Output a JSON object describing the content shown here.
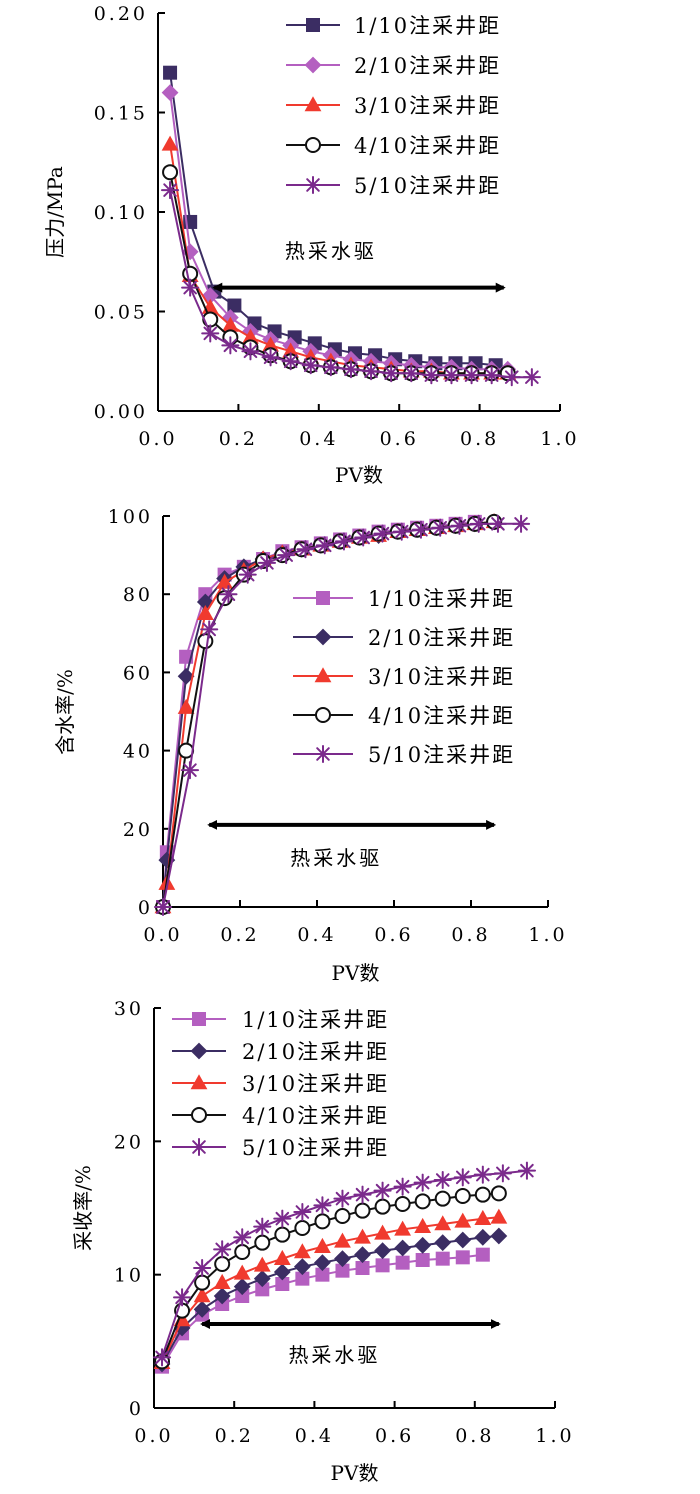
{
  "chart_data": [
    {
      "type": "line",
      "ylabel": "压力/MPa",
      "xlabel": "PV数",
      "xlim": [
        0,
        1.0
      ],
      "ylim": [
        0,
        0.2
      ],
      "x_ticks": [
        "0.0",
        "0.2",
        "0.4",
        "0.6",
        "0.8",
        "1.0"
      ],
      "y_ticks": [
        "0.00",
        "0.05",
        "0.10",
        "0.15",
        "0.20"
      ],
      "annotation": "热采水驱",
      "annotation_arrow": [
        0.14,
        0.86
      ],
      "annotation_arrow_y": 0.062,
      "legend_position": "top-right",
      "series": [
        {
          "name": "1/10注采井距",
          "marker": "square",
          "color": "#3b2d63",
          "x": [
            0.03,
            0.08,
            0.14,
            0.19,
            0.24,
            0.29,
            0.34,
            0.39,
            0.44,
            0.49,
            0.54,
            0.59,
            0.64,
            0.69,
            0.74,
            0.79,
            0.84
          ],
          "y": [
            0.17,
            0.095,
            0.06,
            0.053,
            0.044,
            0.04,
            0.037,
            0.034,
            0.031,
            0.029,
            0.028,
            0.026,
            0.025,
            0.024,
            0.024,
            0.024,
            0.023
          ]
        },
        {
          "name": "2/10注采井距",
          "marker": "diamond",
          "color": "#b45fc0",
          "x": [
            0.03,
            0.08,
            0.13,
            0.18,
            0.23,
            0.28,
            0.33,
            0.38,
            0.43,
            0.48,
            0.53,
            0.58,
            0.63,
            0.68,
            0.73,
            0.78,
            0.83,
            0.87
          ],
          "y": [
            0.16,
            0.08,
            0.058,
            0.047,
            0.04,
            0.036,
            0.033,
            0.03,
            0.028,
            0.026,
            0.025,
            0.024,
            0.023,
            0.022,
            0.022,
            0.021,
            0.021,
            0.021
          ]
        },
        {
          "name": "3/10注采井距",
          "marker": "triangle",
          "color": "#f03a2e",
          "x": [
            0.03,
            0.08,
            0.13,
            0.18,
            0.23,
            0.28,
            0.33,
            0.38,
            0.43,
            0.48,
            0.53,
            0.58,
            0.63,
            0.68,
            0.73,
            0.78,
            0.83,
            0.87
          ],
          "y": [
            0.134,
            0.068,
            0.052,
            0.043,
            0.037,
            0.033,
            0.03,
            0.027,
            0.025,
            0.023,
            0.022,
            0.021,
            0.02,
            0.02,
            0.019,
            0.019,
            0.019,
            0.019
          ]
        },
        {
          "name": "4/10注采井距",
          "marker": "circle",
          "color": "#111111",
          "x": [
            0.03,
            0.08,
            0.13,
            0.18,
            0.23,
            0.28,
            0.33,
            0.38,
            0.43,
            0.48,
            0.53,
            0.58,
            0.63,
            0.68,
            0.73,
            0.78,
            0.83,
            0.87
          ],
          "y": [
            0.12,
            0.069,
            0.046,
            0.037,
            0.032,
            0.028,
            0.025,
            0.023,
            0.022,
            0.021,
            0.02,
            0.019,
            0.019,
            0.019,
            0.019,
            0.019,
            0.019,
            0.019
          ]
        },
        {
          "name": "5/10注采井距",
          "marker": "star",
          "color": "#7b2a8c",
          "x": [
            0.03,
            0.08,
            0.13,
            0.18,
            0.23,
            0.28,
            0.33,
            0.38,
            0.43,
            0.48,
            0.53,
            0.58,
            0.63,
            0.68,
            0.73,
            0.78,
            0.83,
            0.88,
            0.93
          ],
          "y": [
            0.111,
            0.062,
            0.039,
            0.033,
            0.03,
            0.027,
            0.025,
            0.023,
            0.022,
            0.021,
            0.02,
            0.019,
            0.019,
            0.018,
            0.018,
            0.018,
            0.018,
            0.017,
            0.017
          ]
        }
      ]
    },
    {
      "type": "line",
      "ylabel": "含水率/%",
      "xlabel": "PV数",
      "xlim": [
        0,
        1.0
      ],
      "ylim": [
        0,
        100
      ],
      "x_ticks": [
        "0.0",
        "0.2",
        "0.4",
        "0.6",
        "0.8",
        "1.0"
      ],
      "y_ticks": [
        "0",
        "20",
        "40",
        "60",
        "80",
        "100"
      ],
      "annotation": "热采水驱",
      "annotation_arrow": [
        0.12,
        0.86
      ],
      "annotation_arrow_y": 21,
      "legend_position": "center-right",
      "series": [
        {
          "name": "1/10注采井距",
          "marker": "square",
          "color": "#b45fc0",
          "x": [
            0.0,
            0.01,
            0.06,
            0.11,
            0.16,
            0.21,
            0.26,
            0.31,
            0.36,
            0.41,
            0.46,
            0.51,
            0.56,
            0.61,
            0.66,
            0.71,
            0.76,
            0.81
          ],
          "y": [
            0,
            14,
            64,
            80,
            85,
            87,
            89,
            91,
            92,
            93,
            94,
            95,
            96,
            96.5,
            97,
            97.5,
            98,
            98.5
          ]
        },
        {
          "name": "2/10注采井距",
          "marker": "diamond",
          "color": "#3b2d63",
          "x": [
            0.0,
            0.01,
            0.06,
            0.11,
            0.16,
            0.21,
            0.26,
            0.31,
            0.36,
            0.41,
            0.46,
            0.51,
            0.56,
            0.61,
            0.66,
            0.71,
            0.76,
            0.81,
            0.86
          ],
          "y": [
            0,
            12,
            59,
            78,
            84,
            87,
            89,
            90.5,
            91.5,
            92.5,
            93.5,
            94.5,
            95,
            96,
            96.5,
            97,
            97.5,
            98,
            98.5
          ]
        },
        {
          "name": "3/10注采井距",
          "marker": "triangle",
          "color": "#f03a2e",
          "x": [
            0.0,
            0.01,
            0.06,
            0.11,
            0.16,
            0.21,
            0.26,
            0.31,
            0.36,
            0.41,
            0.46,
            0.51,
            0.56,
            0.61,
            0.66,
            0.71,
            0.76,
            0.81,
            0.86
          ],
          "y": [
            0,
            6,
            51,
            75,
            83,
            86,
            89,
            90.5,
            91.5,
            92.5,
            93.5,
            94.5,
            95,
            96,
            96.5,
            97,
            97.5,
            98,
            98.5
          ]
        },
        {
          "name": "4/10注采井距",
          "marker": "circle",
          "color": "#111111",
          "x": [
            0.0,
            0.06,
            0.11,
            0.16,
            0.21,
            0.26,
            0.31,
            0.36,
            0.41,
            0.46,
            0.51,
            0.56,
            0.61,
            0.66,
            0.71,
            0.76,
            0.81,
            0.86
          ],
          "y": [
            0,
            40,
            68,
            79,
            85,
            88.5,
            90,
            91.5,
            92.5,
            93.5,
            94.5,
            95.5,
            96,
            96.5,
            97,
            97.5,
            98,
            98.5
          ]
        },
        {
          "name": "5/10注采井距",
          "marker": "star",
          "color": "#7b2a8c",
          "x": [
            0.0,
            0.07,
            0.12,
            0.17,
            0.22,
            0.27,
            0.32,
            0.37,
            0.42,
            0.47,
            0.52,
            0.57,
            0.62,
            0.67,
            0.72,
            0.77,
            0.82,
            0.87,
            0.93
          ],
          "y": [
            0,
            35,
            71,
            80,
            85,
            88,
            90,
            91.5,
            92.5,
            93.5,
            94.5,
            95.5,
            96,
            96.5,
            97,
            97.5,
            98,
            98,
            98
          ]
        }
      ]
    },
    {
      "type": "line",
      "ylabel": "采收率/%",
      "xlabel": "PV数",
      "xlim": [
        0,
        1.0
      ],
      "ylim": [
        0,
        30
      ],
      "x_ticks": [
        "0.0",
        "0.2",
        "0.4",
        "0.6",
        "0.8",
        "1.0"
      ],
      "y_ticks": [
        "0",
        "10",
        "20",
        "30"
      ],
      "annotation": "热采水驱",
      "annotation_arrow": [
        0.12,
        0.86
      ],
      "annotation_arrow_y": 6.3,
      "legend_position": "top-left",
      "series": [
        {
          "name": "1/10注采井距",
          "marker": "square",
          "color": "#b45fc0",
          "x": [
            0.02,
            0.07,
            0.12,
            0.17,
            0.22,
            0.27,
            0.32,
            0.37,
            0.42,
            0.47,
            0.52,
            0.57,
            0.62,
            0.67,
            0.72,
            0.77,
            0.82
          ],
          "y": [
            3.1,
            5.6,
            7.0,
            7.8,
            8.4,
            8.9,
            9.3,
            9.7,
            10.0,
            10.3,
            10.5,
            10.7,
            10.9,
            11.1,
            11.2,
            11.3,
            11.5
          ]
        },
        {
          "name": "2/10注采井距",
          "marker": "diamond",
          "color": "#3b2d63",
          "x": [
            0.02,
            0.07,
            0.12,
            0.17,
            0.22,
            0.27,
            0.32,
            0.37,
            0.42,
            0.47,
            0.52,
            0.57,
            0.62,
            0.67,
            0.72,
            0.77,
            0.82,
            0.86
          ],
          "y": [
            3.3,
            6.0,
            7.4,
            8.4,
            9.1,
            9.7,
            10.2,
            10.6,
            10.9,
            11.2,
            11.5,
            11.8,
            12.0,
            12.2,
            12.4,
            12.6,
            12.8,
            12.9
          ]
        },
        {
          "name": "3/10注采井距",
          "marker": "triangle",
          "color": "#f03a2e",
          "x": [
            0.02,
            0.07,
            0.12,
            0.17,
            0.22,
            0.27,
            0.32,
            0.37,
            0.42,
            0.47,
            0.52,
            0.57,
            0.62,
            0.67,
            0.72,
            0.77,
            0.82,
            0.86
          ],
          "y": [
            3.4,
            6.6,
            8.4,
            9.4,
            10.1,
            10.7,
            11.2,
            11.7,
            12.1,
            12.5,
            12.8,
            13.1,
            13.4,
            13.6,
            13.8,
            14.0,
            14.2,
            14.3
          ]
        },
        {
          "name": "4/10注采井距",
          "marker": "circle",
          "color": "#111111",
          "x": [
            0.02,
            0.07,
            0.12,
            0.17,
            0.22,
            0.27,
            0.32,
            0.37,
            0.42,
            0.47,
            0.52,
            0.57,
            0.62,
            0.67,
            0.72,
            0.77,
            0.82,
            0.86
          ],
          "y": [
            3.5,
            7.3,
            9.4,
            10.8,
            11.7,
            12.4,
            13.0,
            13.5,
            14.0,
            14.4,
            14.8,
            15.1,
            15.3,
            15.5,
            15.7,
            15.9,
            16.0,
            16.1
          ]
        },
        {
          "name": "5/10注采井距",
          "marker": "star",
          "color": "#7b2a8c",
          "x": [
            0.02,
            0.07,
            0.12,
            0.17,
            0.22,
            0.27,
            0.32,
            0.37,
            0.42,
            0.47,
            0.52,
            0.57,
            0.62,
            0.67,
            0.72,
            0.77,
            0.82,
            0.87,
            0.93
          ],
          "y": [
            3.8,
            8.3,
            10.5,
            11.9,
            12.8,
            13.6,
            14.2,
            14.7,
            15.2,
            15.7,
            16.0,
            16.3,
            16.6,
            16.9,
            17.1,
            17.3,
            17.5,
            17.6,
            17.8
          ]
        }
      ]
    }
  ]
}
